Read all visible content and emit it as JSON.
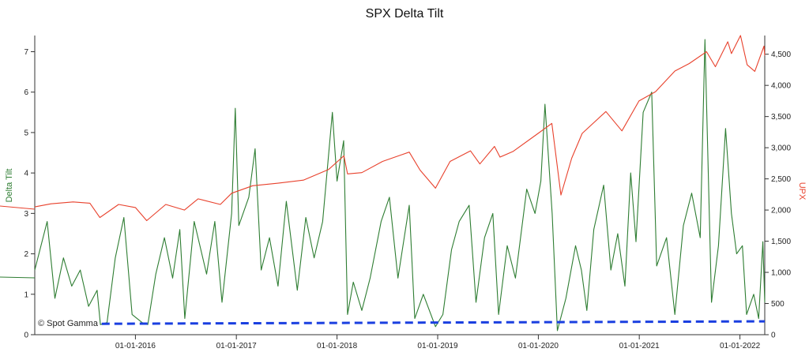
{
  "chart_data": {
    "type": "line",
    "title": "SPX Delta Tilt",
    "watermark": "© Spot Gamma",
    "x_axis": {
      "range": [
        "2015-01-01",
        "2022-04-01"
      ],
      "tick_labels": [
        "01-01-2016",
        "01-01-2017",
        "01-01-2018",
        "01-01-2019",
        "01-01-2020",
        "01-01-2021",
        "01-01-2022"
      ]
    },
    "y_left": {
      "label": "Delta Tilt",
      "color": "#2e7d32",
      "range": [
        0,
        7.4
      ],
      "ticks": [
        0,
        1,
        2,
        3,
        4,
        5,
        6,
        7
      ],
      "tick_labels": [
        "0",
        "1",
        "2",
        "3",
        "4",
        "5",
        "6",
        "7"
      ]
    },
    "y_right": {
      "label": "UPX",
      "color": "#e8412c",
      "range": [
        0,
        4800
      ],
      "ticks": [
        0,
        500,
        1000,
        1500,
        2000,
        2500,
        3000,
        3500,
        4000,
        4500
      ],
      "tick_labels": [
        "0",
        "500",
        "1,000",
        "1,500",
        "2,000",
        "2,500",
        "3,000",
        "3,500",
        "4,000",
        "4,500"
      ]
    },
    "grid": false,
    "series": [
      {
        "name": "Delta Tilt",
        "axis": "left",
        "color": "#2e7d32",
        "style": "solid",
        "points": [
          [
            "2015-01-01",
            1.6
          ],
          [
            "2015-02-15",
            2.8
          ],
          [
            "2015-03-15",
            0.9
          ],
          [
            "2015-04-15",
            1.9
          ],
          [
            "2015-05-15",
            1.2
          ],
          [
            "2015-06-15",
            1.6
          ],
          [
            "2015-07-15",
            0.7
          ],
          [
            "2015-08-15",
            1.1
          ],
          [
            "2015-08-27",
            0.25
          ],
          [
            "2015-09-20",
            0.3
          ],
          [
            "2015-10-20",
            1.9
          ],
          [
            "2015-11-20",
            2.9
          ],
          [
            "2015-12-20",
            0.5
          ],
          [
            "2016-01-25",
            0.3
          ],
          [
            "2016-02-15",
            0.25
          ],
          [
            "2016-03-15",
            1.5
          ],
          [
            "2016-04-15",
            2.4
          ],
          [
            "2016-05-15",
            1.4
          ],
          [
            "2016-06-10",
            2.6
          ],
          [
            "2016-06-28",
            0.4
          ],
          [
            "2016-08-01",
            2.8
          ],
          [
            "2016-09-15",
            1.5
          ],
          [
            "2016-10-15",
            2.8
          ],
          [
            "2016-11-10",
            0.8
          ],
          [
            "2016-12-15",
            3.0
          ],
          [
            "2016-12-28",
            5.6
          ],
          [
            "2017-01-10",
            2.7
          ],
          [
            "2017-02-15",
            3.4
          ],
          [
            "2017-03-10",
            4.6
          ],
          [
            "2017-04-01",
            1.6
          ],
          [
            "2017-05-01",
            2.4
          ],
          [
            "2017-06-01",
            1.2
          ],
          [
            "2017-07-01",
            3.3
          ],
          [
            "2017-08-10",
            1.1
          ],
          [
            "2017-09-10",
            2.9
          ],
          [
            "2017-10-10",
            1.9
          ],
          [
            "2017-11-10",
            2.8
          ],
          [
            "2017-12-15",
            5.5
          ],
          [
            "2018-01-01",
            3.8
          ],
          [
            "2018-01-25",
            4.8
          ],
          [
            "2018-02-08",
            0.5
          ],
          [
            "2018-03-01",
            1.3
          ],
          [
            "2018-04-01",
            0.6
          ],
          [
            "2018-05-01",
            1.4
          ],
          [
            "2018-06-10",
            2.8
          ],
          [
            "2018-07-10",
            3.4
          ],
          [
            "2018-08-10",
            1.4
          ],
          [
            "2018-09-20",
            3.2
          ],
          [
            "2018-10-10",
            0.4
          ],
          [
            "2018-11-10",
            1.0
          ],
          [
            "2018-12-24",
            0.2
          ],
          [
            "2019-01-20",
            0.5
          ],
          [
            "2019-02-20",
            2.1
          ],
          [
            "2019-03-20",
            2.8
          ],
          [
            "2019-04-25",
            3.2
          ],
          [
            "2019-05-20",
            0.8
          ],
          [
            "2019-06-20",
            2.4
          ],
          [
            "2019-07-20",
            3.0
          ],
          [
            "2019-08-10",
            0.5
          ],
          [
            "2019-09-10",
            2.2
          ],
          [
            "2019-10-10",
            1.4
          ],
          [
            "2019-11-20",
            3.6
          ],
          [
            "2019-12-20",
            3.0
          ],
          [
            "2020-01-10",
            3.8
          ],
          [
            "2020-01-25",
            5.7
          ],
          [
            "2020-02-20",
            3.0
          ],
          [
            "2020-03-10",
            0.1
          ],
          [
            "2020-04-10",
            0.9
          ],
          [
            "2020-05-15",
            2.2
          ],
          [
            "2020-06-05",
            1.6
          ],
          [
            "2020-06-25",
            0.6
          ],
          [
            "2020-07-20",
            2.6
          ],
          [
            "2020-08-25",
            3.7
          ],
          [
            "2020-09-20",
            1.6
          ],
          [
            "2020-10-15",
            2.5
          ],
          [
            "2020-11-10",
            1.2
          ],
          [
            "2020-12-01",
            4.0
          ],
          [
            "2020-12-20",
            2.3
          ],
          [
            "2021-01-15",
            5.5
          ],
          [
            "2021-02-15",
            6.0
          ],
          [
            "2021-03-05",
            1.7
          ],
          [
            "2021-04-10",
            2.4
          ],
          [
            "2021-05-10",
            0.5
          ],
          [
            "2021-06-10",
            2.7
          ],
          [
            "2021-07-10",
            3.5
          ],
          [
            "2021-08-10",
            2.4
          ],
          [
            "2021-08-27",
            7.3
          ],
          [
            "2021-09-20",
            0.8
          ],
          [
            "2021-10-15",
            2.2
          ],
          [
            "2021-11-10",
            5.1
          ],
          [
            "2021-12-01",
            3.0
          ],
          [
            "2021-12-20",
            2.0
          ],
          [
            "2022-01-10",
            2.2
          ],
          [
            "2022-01-25",
            0.5
          ],
          [
            "2022-02-20",
            1.0
          ],
          [
            "2022-03-10",
            0.4
          ],
          [
            "2022-03-25",
            2.3
          ],
          [
            "2022-04-01",
            0.8
          ]
        ]
      },
      {
        "name": "UPX",
        "axis": "right",
        "color": "#e8412c",
        "style": "solid",
        "points": [
          [
            "2015-01-01",
            2050
          ],
          [
            "2015-03-01",
            2100
          ],
          [
            "2015-05-20",
            2130
          ],
          [
            "2015-07-20",
            2110
          ],
          [
            "2015-08-25",
            1880
          ],
          [
            "2015-11-01",
            2090
          ],
          [
            "2016-01-01",
            2040
          ],
          [
            "2016-02-11",
            1830
          ],
          [
            "2016-04-20",
            2090
          ],
          [
            "2016-06-27",
            2000
          ],
          [
            "2016-08-15",
            2180
          ],
          [
            "2016-11-04",
            2090
          ],
          [
            "2016-12-15",
            2270
          ],
          [
            "2017-03-01",
            2390
          ],
          [
            "2017-06-01",
            2430
          ],
          [
            "2017-09-01",
            2480
          ],
          [
            "2017-12-01",
            2650
          ],
          [
            "2018-01-26",
            2870
          ],
          [
            "2018-02-08",
            2580
          ],
          [
            "2018-04-01",
            2600
          ],
          [
            "2018-06-15",
            2780
          ],
          [
            "2018-09-20",
            2930
          ],
          [
            "2018-10-29",
            2640
          ],
          [
            "2018-12-24",
            2350
          ],
          [
            "2019-02-15",
            2780
          ],
          [
            "2019-04-30",
            2950
          ],
          [
            "2019-06-03",
            2740
          ],
          [
            "2019-07-26",
            3020
          ],
          [
            "2019-08-15",
            2850
          ],
          [
            "2019-10-01",
            2940
          ],
          [
            "2019-12-31",
            3230
          ],
          [
            "2020-02-19",
            3390
          ],
          [
            "2020-03-23",
            2240
          ],
          [
            "2020-05-01",
            2830
          ],
          [
            "2020-06-08",
            3230
          ],
          [
            "2020-09-02",
            3580
          ],
          [
            "2020-10-30",
            3270
          ],
          [
            "2020-12-31",
            3750
          ],
          [
            "2021-03-01",
            3900
          ],
          [
            "2021-05-10",
            4230
          ],
          [
            "2021-07-01",
            4350
          ],
          [
            "2021-09-02",
            4540
          ],
          [
            "2021-10-04",
            4300
          ],
          [
            "2021-11-18",
            4700
          ],
          [
            "2021-12-01",
            4510
          ],
          [
            "2022-01-03",
            4800
          ],
          [
            "2022-01-27",
            4330
          ],
          [
            "2022-02-24",
            4225
          ],
          [
            "2022-03-29",
            4630
          ],
          [
            "2022-04-01",
            4480
          ]
        ]
      },
      {
        "name": "",
        "axis": "left",
        "color": "#1a3fe0",
        "style": "dashed",
        "points": [
          [
            "2015-09-01",
            0.27
          ],
          [
            "2022-04-01",
            0.33
          ]
        ]
      }
    ]
  }
}
